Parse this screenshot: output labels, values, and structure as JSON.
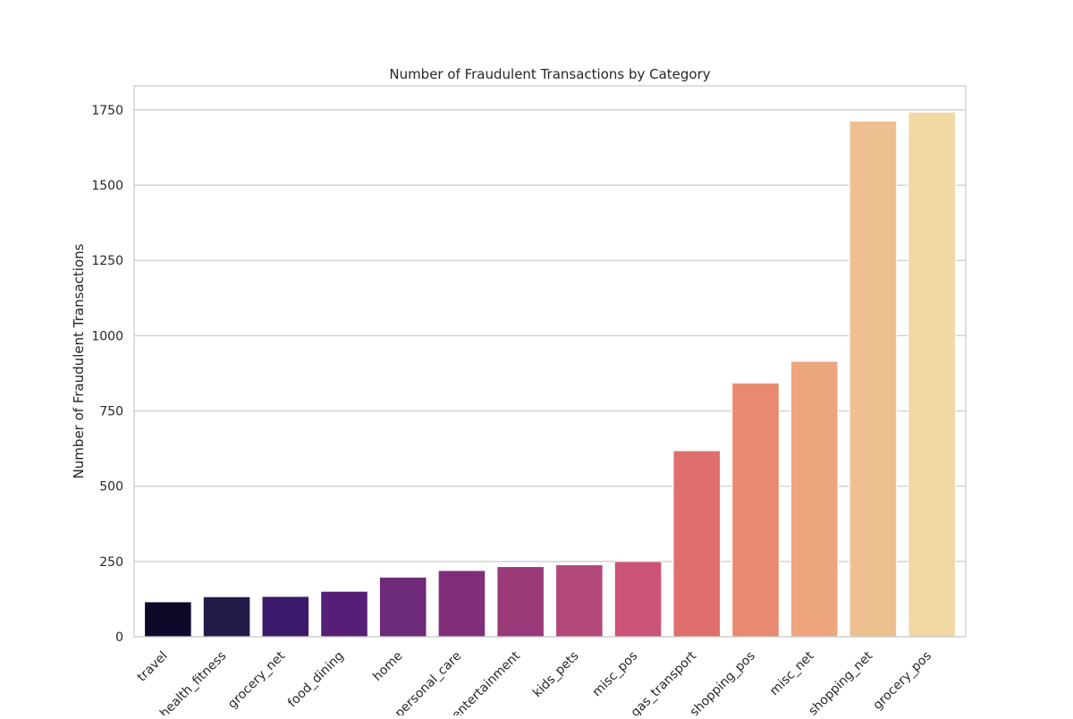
{
  "chart_data": {
    "type": "bar",
    "title": "Number of Fraudulent Transactions by Category",
    "xlabel": "",
    "ylabel": "Number of Fraudulent Transactions",
    "categories": [
      "travel",
      "health_fitness",
      "grocery_net",
      "food_dining",
      "home",
      "personal_care",
      "entertainment",
      "kids_pets",
      "misc_pos",
      "gas_transport",
      "shopping_pos",
      "misc_net",
      "shopping_net",
      "grocery_pos"
    ],
    "values": [
      116,
      133,
      134,
      151,
      198,
      220,
      233,
      239,
      250,
      618,
      843,
      915,
      1713,
      1743
    ],
    "colors": [
      "#0d0a29",
      "#221a47",
      "#3b1a6b",
      "#561e76",
      "#6c2a78",
      "#812e7a",
      "#9a3a79",
      "#b3497a",
      "#cc5577",
      "#de6f6d",
      "#e78a70",
      "#eda57e",
      "#efc08f",
      "#f1d9a6"
    ],
    "ylim": [
      0,
      1830
    ],
    "yticks": [
      0,
      250,
      500,
      750,
      1000,
      1250,
      1500,
      1750
    ],
    "grid": true,
    "legend": "none"
  }
}
